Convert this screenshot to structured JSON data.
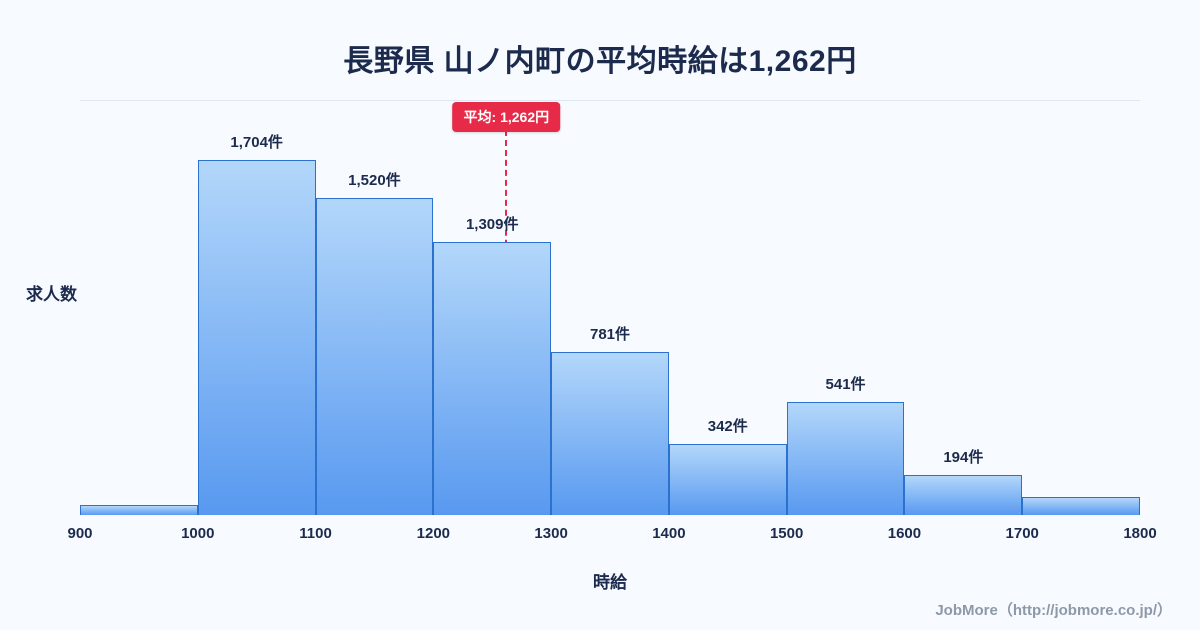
{
  "page": {
    "title": "長野県 山ノ内町の平均時給は1,262円",
    "footer_credit": "JobMore（http://jobmore.co.jp/）"
  },
  "chart_data": {
    "type": "bar",
    "title": "長野県 山ノ内町の平均時給は1,262円",
    "xlabel": "時給",
    "ylabel": "求人数",
    "x_range": [
      900,
      1800
    ],
    "bins": [
      900,
      1000,
      1100,
      1200,
      1300,
      1400,
      1500,
      1600,
      1700,
      1800
    ],
    "x_ticks": [
      "900",
      "1000",
      "1100",
      "1200",
      "1300",
      "1400",
      "1500",
      "1600",
      "1700",
      "1800"
    ],
    "values": [
      50,
      1704,
      1520,
      1309,
      781,
      342,
      541,
      194,
      85
    ],
    "bar_labels": [
      "",
      "1,704件",
      "1,520件",
      "1,309件",
      "781件",
      "342件",
      "541件",
      "194件",
      ""
    ],
    "mean": 1262,
    "mean_label": "平均: 1,262円",
    "grid": "top-line-only",
    "legend_position": "none",
    "colors": {
      "accent_red": "#e62a47",
      "bar_border": "#2b72cf",
      "bar_top": "#b3d7fa",
      "bar_bottom": "#5899f0",
      "ink": "#1c2b4d",
      "bg": "#f7faff",
      "muted": "#8e99a8"
    }
  }
}
